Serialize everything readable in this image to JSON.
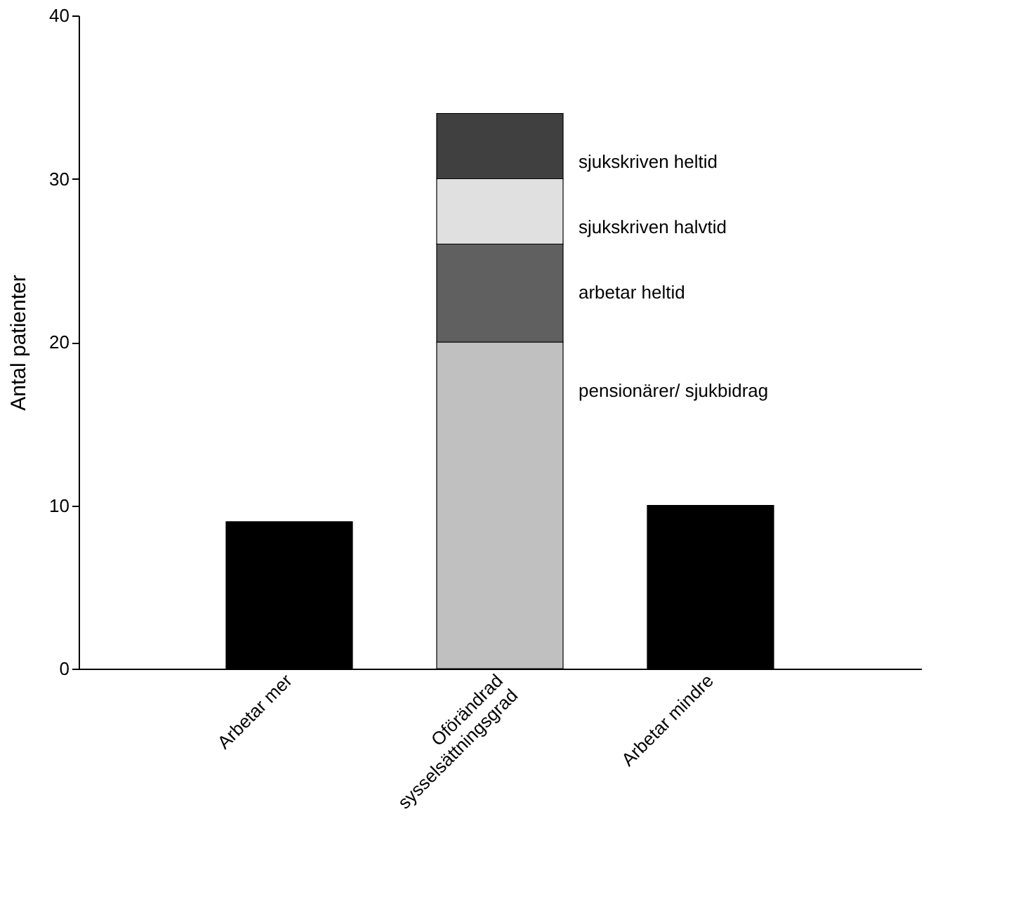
{
  "chart_data": {
    "type": "bar",
    "stacked": true,
    "ylabel": "Antal patienter",
    "categories": [
      "Arbetar mer",
      "Oförändrad\nsysselsättningsgrad",
      "Arbetar mindre"
    ],
    "series": [
      {
        "color": "#000000",
        "values": [
          9,
          null,
          10
        ]
      },
      {
        "name": "pensionärer/ sjukbidrag",
        "color": "#c0c0c0",
        "values": [
          null,
          20,
          null
        ]
      },
      {
        "name": "arbetar heltid",
        "color": "#606060",
        "values": [
          null,
          6,
          null
        ]
      },
      {
        "name": "sjukskriven halvtid",
        "color": "#e0e0e0",
        "values": [
          null,
          4,
          null
        ]
      },
      {
        "name": "sjukskriven heltid",
        "color": "#404040",
        "values": [
          null,
          4,
          null
        ]
      }
    ],
    "ylim": [
      0,
      40
    ],
    "yticks": [
      0,
      10,
      20,
      30,
      40
    ],
    "grid": false,
    "legend": false
  }
}
